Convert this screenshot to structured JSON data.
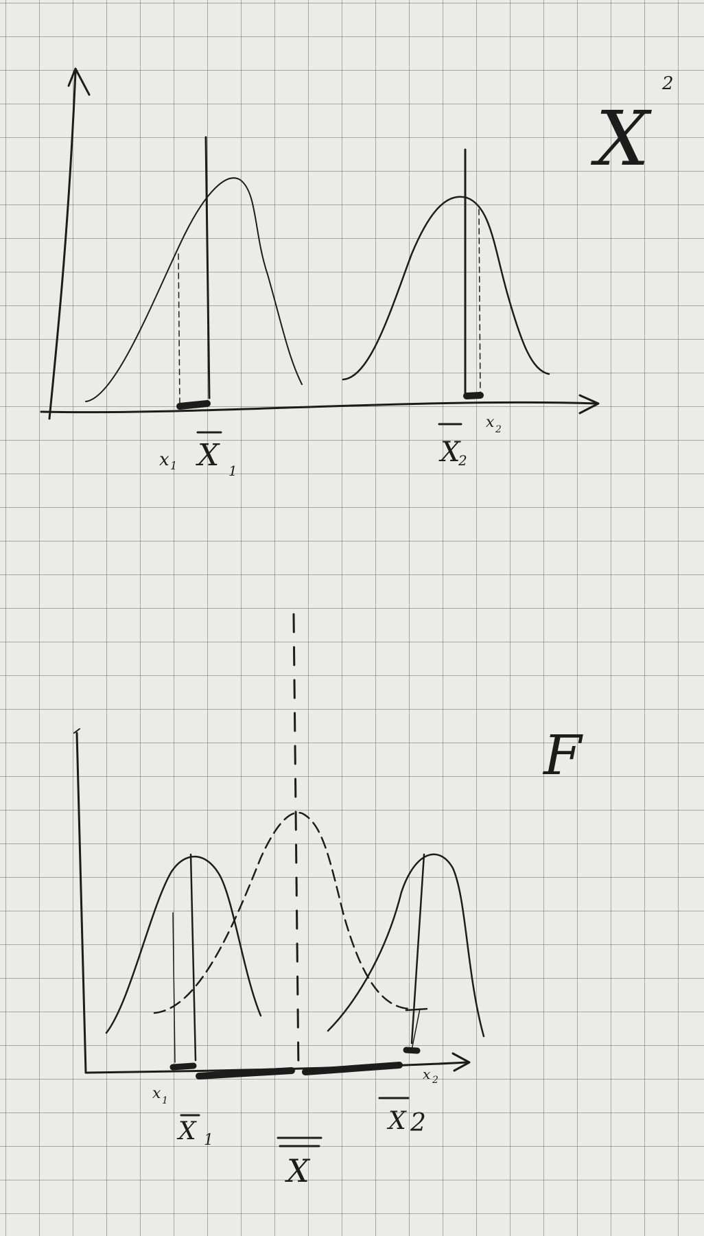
{
  "top_figure": {
    "title": "X",
    "title_superscript": "2",
    "labels": {
      "x1_small": "x",
      "x1_small_sub": "1",
      "x1_bar": "X",
      "x1_bar_sub": "1",
      "x2_bar": "X",
      "x2_bar_sub": "2",
      "x2_small": "x",
      "x2_small_sub": "2"
    }
  },
  "bottom_figure": {
    "title": "F",
    "labels": {
      "x1_small": "x",
      "x1_small_sub": "1",
      "x1_bar": "X",
      "x1_bar_sub": "1",
      "x_double_bar": "X",
      "x2_bar": "X",
      "x2_bar_sub": "2",
      "x2_small": "x",
      "x2_small_sub": "2"
    }
  },
  "colors": {
    "ink": "#1c1c1c",
    "paper": "#ebebe9",
    "grid": "#6e6e6e"
  }
}
